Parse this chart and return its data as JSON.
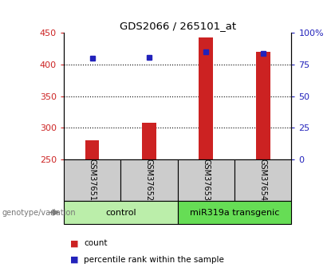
{
  "title": "GDS2066 / 265101_at",
  "categories": [
    "GSM37651",
    "GSM37652",
    "GSM37653",
    "GSM37654"
  ],
  "red_values": [
    280,
    308,
    443,
    420
  ],
  "blue_values": [
    410,
    412,
    420,
    418
  ],
  "ylim_left": [
    250,
    450
  ],
  "ylim_right": [
    0,
    100
  ],
  "yticks_left": [
    250,
    300,
    350,
    400,
    450
  ],
  "yticks_right": [
    0,
    25,
    50,
    75,
    100
  ],
  "yticklabels_right": [
    "0",
    "25",
    "50",
    "75",
    "100%"
  ],
  "red_color": "#cc2222",
  "blue_color": "#2222bb",
  "bar_width": 0.25,
  "group_colors": [
    "#bbeeaa",
    "#66dd55"
  ],
  "group_labels": [
    "control",
    "miR319a transgenic"
  ],
  "group_label_text": "genotype/variation",
  "legend_items": [
    "count",
    "percentile rank within the sample"
  ],
  "legend_colors": [
    "#cc2222",
    "#2222bb"
  ],
  "label_area_color": "#cccccc",
  "blue_marker_size": 5,
  "grid_dotted_vals": [
    300,
    350,
    400
  ]
}
